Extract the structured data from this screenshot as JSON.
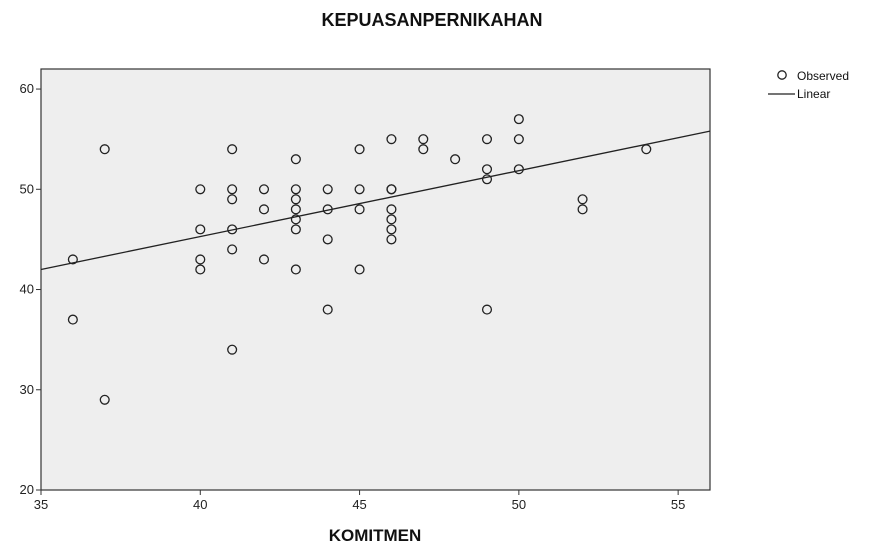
{
  "chart_data": {
    "type": "scatter",
    "title": "KEPUASANPERNIKAHAN",
    "xlabel": "KOMITMEN",
    "ylabel": "",
    "xlim": [
      35,
      56
    ],
    "ylim": [
      20,
      62
    ],
    "xticks": [
      35,
      40,
      45,
      50,
      55
    ],
    "yticks": [
      20,
      30,
      40,
      50,
      60
    ],
    "grid": false,
    "legend_position": "top-right",
    "colors": {
      "plot_background": "#eeeeee",
      "marker_stroke": "#222222",
      "line": "#222222",
      "frame": "#333333"
    },
    "series": [
      {
        "name": "Observed",
        "kind": "points",
        "x": [
          36,
          36,
          37,
          37,
          40,
          40,
          40,
          40,
          41,
          41,
          41,
          41,
          41,
          41,
          42,
          42,
          42,
          43,
          43,
          43,
          43,
          43,
          43,
          43,
          44,
          44,
          44,
          44,
          45,
          45,
          45,
          45,
          46,
          46,
          46,
          46,
          46,
          46,
          46,
          47,
          47,
          48,
          49,
          49,
          49,
          49,
          50,
          50,
          50,
          52,
          52,
          54
        ],
        "y": [
          43,
          37,
          54,
          29,
          50,
          46,
          43,
          42,
          54,
          50,
          49,
          46,
          44,
          34,
          50,
          48,
          43,
          53,
          50,
          49,
          48,
          47,
          46,
          42,
          50,
          48,
          45,
          38,
          54,
          50,
          48,
          42,
          55,
          50,
          48,
          47,
          46,
          45,
          50,
          55,
          54,
          53,
          55,
          52,
          51,
          38,
          57,
          55,
          52,
          49,
          48,
          54
        ]
      },
      {
        "name": "Linear",
        "kind": "line",
        "x": [
          35,
          56
        ],
        "y": [
          42,
          55.8
        ]
      }
    ]
  }
}
